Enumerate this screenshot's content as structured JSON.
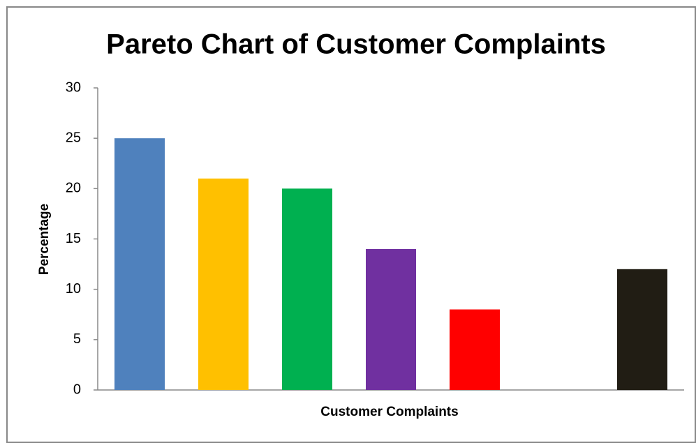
{
  "chart_data": {
    "type": "bar",
    "title": "Pareto Chart of Customer Complaints",
    "x_label": "Customer Complaints",
    "y_label": "Percentage",
    "categories": [
      null,
      null,
      null,
      null,
      null,
      null,
      null
    ],
    "values": [
      25,
      21,
      20,
      14,
      8,
      null,
      12
    ],
    "colors": [
      "#4f81bd",
      "#ffc000",
      "#00b050",
      "#7030a0",
      "#ff0000",
      null,
      "#211d14"
    ],
    "ylim": [
      0,
      30
    ],
    "yticks": [
      0,
      5,
      10,
      15,
      20,
      25,
      30
    ],
    "grid": false
  }
}
